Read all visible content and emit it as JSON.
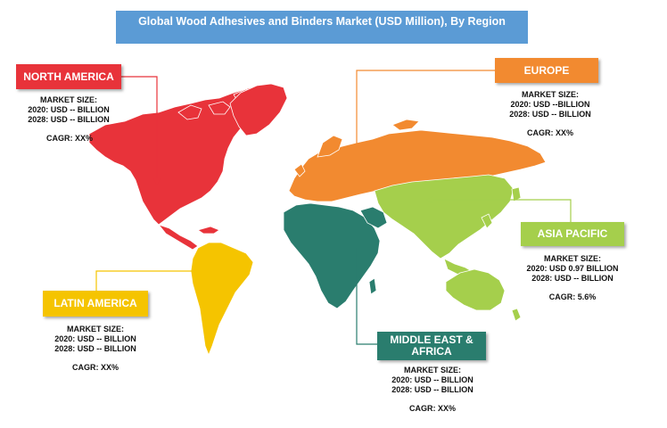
{
  "title": "Global Wood Adhesives and Binders Market (USD Million), By Region",
  "colors": {
    "north_america": "#e8333a",
    "europe": "#f28a30",
    "asia_pacific": "#a5cf4c",
    "latin_america": "#f5c400",
    "middle_east_africa": "#2a7d6e",
    "title_banner": "#5b9bd5"
  },
  "regions": {
    "north_america": {
      "name": "NORTH AMERICA",
      "market_size_label": "MARKET SIZE:",
      "line_2020": "2020: USD -- BILLION",
      "line_2028": "2028: USD -- BILLION",
      "cagr": "CAGR: XX%"
    },
    "europe": {
      "name": "EUROPE",
      "market_size_label": "MARKET SIZE:",
      "line_2020": "2020: USD --BILLION",
      "line_2028": "2028: USD -- BILLION",
      "cagr": "CAGR: XX%"
    },
    "asia_pacific": {
      "name": "ASIA PACIFIC",
      "market_size_label": "MARKET SIZE:",
      "line_2020": "2020: USD 0.97 BILLION",
      "line_2028": "2028: USD -- BILLION",
      "cagr": "CAGR: 5.6%"
    },
    "latin_america": {
      "name": "LATIN AMERICA",
      "market_size_label": "MARKET SIZE:",
      "line_2020": "2020: USD -- BILLION",
      "line_2028": "2028: USD -- BILLION",
      "cagr": "CAGR: XX%"
    },
    "middle_east_africa": {
      "name": "MIDDLE EAST & AFRICA",
      "market_size_label": "MARKET SIZE:",
      "line_2020": "2020: USD -- BILLION",
      "line_2028": "2028: USD -- BILLION",
      "cagr": "CAGR: XX%"
    }
  }
}
